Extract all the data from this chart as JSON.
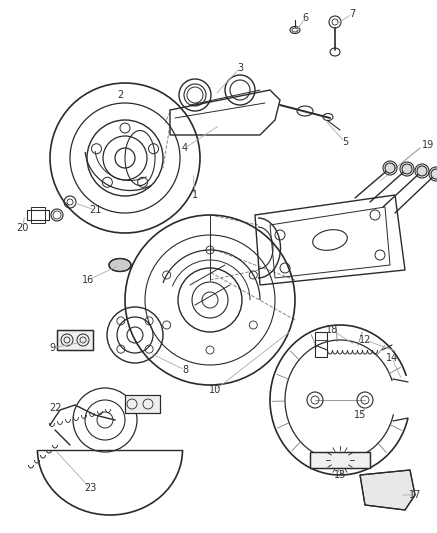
{
  "bg_color": "#ffffff",
  "line_color": "#2a2a2a",
  "label_color": "#555555",
  "fig_width": 4.37,
  "fig_height": 5.33,
  "dpi": 100
}
